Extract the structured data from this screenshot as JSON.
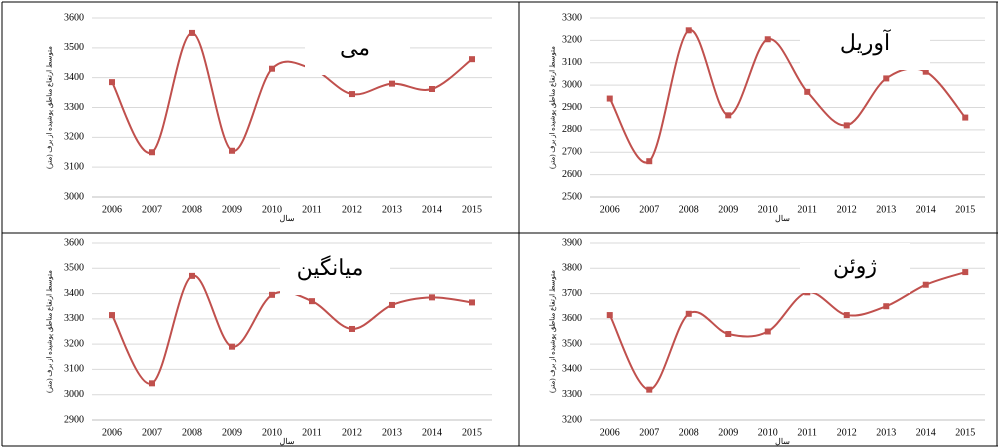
{
  "chart_data": [
    {
      "type": "line",
      "title": "می",
      "y_label": "متوسط ارتفاع مناطق پوشیده از برف (متر)",
      "x_label": "سال",
      "categories": [
        "2006",
        "2007",
        "2008",
        "2009",
        "2010",
        "2011",
        "2012",
        "2013",
        "2014",
        "2015"
      ],
      "values": [
        3385,
        3150,
        3550,
        3155,
        3430,
        3430,
        3345,
        3380,
        3362,
        3462
      ],
      "color": "#c0504d",
      "ylim": [
        3000,
        3600
      ],
      "yticks": [
        3000,
        3100,
        3200,
        3300,
        3400,
        3500,
        3600
      ],
      "grid": true
    },
    {
      "type": "line",
      "title": "آوریل",
      "y_label": "متوسط ارتفاع مناطق پوشیده از برف (متر)",
      "x_label": "سال",
      "categories": [
        "2006",
        "2007",
        "2008",
        "2009",
        "2010",
        "2011",
        "2012",
        "2013",
        "2014",
        "2015"
      ],
      "values": [
        2940,
        2660,
        3245,
        2865,
        3205,
        2970,
        2820,
        3030,
        3060,
        2855
      ],
      "color": "#c0504d",
      "ylim": [
        2500,
        3300
      ],
      "yticks": [
        2500,
        2600,
        2700,
        2800,
        2900,
        3000,
        3100,
        3200,
        3300
      ],
      "grid": true
    },
    {
      "type": "line",
      "title": "میانگین",
      "y_label": "متوسط ارتفاع مناطق پوشیده از برف (متر)",
      "x_label": "سال",
      "categories": [
        "2006",
        "2007",
        "2008",
        "2009",
        "2010",
        "2011",
        "2012",
        "2013",
        "2014",
        "2015"
      ],
      "values": [
        3315,
        3045,
        3470,
        3190,
        3395,
        3370,
        3260,
        3355,
        3385,
        3365
      ],
      "color": "#c0504d",
      "ylim": [
        2900,
        3600
      ],
      "yticks": [
        2900,
        3000,
        3100,
        3200,
        3300,
        3400,
        3500,
        3600
      ],
      "grid": true
    },
    {
      "type": "line",
      "title": "ژوئن",
      "y_label": "متوسط ارتفاع مناطق پوشیده از برف (متر)",
      "x_label": "سال",
      "categories": [
        "2006",
        "2007",
        "2008",
        "2009",
        "2010",
        "2011",
        "2012",
        "2013",
        "2014",
        "2015"
      ],
      "values": [
        3615,
        3320,
        3620,
        3540,
        3550,
        3705,
        3615,
        3650,
        3735,
        3785
      ],
      "color": "#c0504d",
      "ylim": [
        3200,
        3900
      ],
      "yticks": [
        3200,
        3300,
        3400,
        3500,
        3600,
        3700,
        3800,
        3900
      ],
      "grid": true
    }
  ]
}
